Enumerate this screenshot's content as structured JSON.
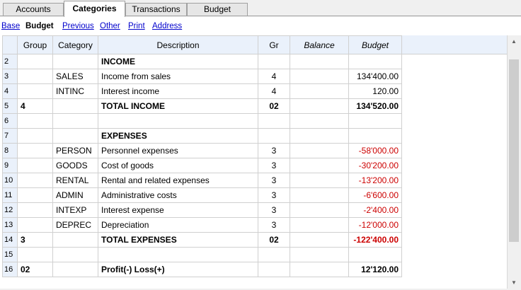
{
  "tabs": [
    {
      "label": "Accounts"
    },
    {
      "label": "Categories"
    },
    {
      "label": "Transactions"
    },
    {
      "label": "Budget"
    }
  ],
  "views": {
    "base": "Base",
    "budget": "Budget",
    "previous": "Previous",
    "other": "Other",
    "print": "Print",
    "address": "Address"
  },
  "columns": {
    "group": "Group",
    "category": "Category",
    "description": "Description",
    "gr": "Gr",
    "balance": "Balance",
    "budget": "Budget"
  },
  "rows": [
    {
      "n": "2",
      "group": "",
      "category": "",
      "description": "INCOME",
      "gr": "",
      "balance": "",
      "budget": ""
    },
    {
      "n": "3",
      "group": "",
      "category": "SALES",
      "description": "Income from sales",
      "gr": "4",
      "balance": "",
      "budget": "134'400.00"
    },
    {
      "n": "4",
      "group": "",
      "category": "INTINC",
      "description": "Interest income",
      "gr": "4",
      "balance": "",
      "budget": "120.00"
    },
    {
      "n": "5",
      "group": "4",
      "category": "",
      "description": "TOTAL INCOME",
      "gr": "02",
      "balance": "",
      "budget": "134'520.00"
    },
    {
      "n": "6",
      "group": "",
      "category": "",
      "description": "",
      "gr": "",
      "balance": "",
      "budget": ""
    },
    {
      "n": "7",
      "group": "",
      "category": "",
      "description": "EXPENSES",
      "gr": "",
      "balance": "",
      "budget": ""
    },
    {
      "n": "8",
      "group": "",
      "category": "PERSON",
      "description": "Personnel expenses",
      "gr": "3",
      "balance": "",
      "budget": "-58'000.00"
    },
    {
      "n": "9",
      "group": "",
      "category": "GOODS",
      "description": "Cost of goods",
      "gr": "3",
      "balance": "",
      "budget": "-30'200.00"
    },
    {
      "n": "10",
      "group": "",
      "category": "RENTAL",
      "description": "Rental and related expenses",
      "gr": "3",
      "balance": "",
      "budget": "-13'200.00"
    },
    {
      "n": "11",
      "group": "",
      "category": "ADMIN",
      "description": "Administrative costs",
      "gr": "3",
      "balance": "",
      "budget": "-6'600.00"
    },
    {
      "n": "12",
      "group": "",
      "category": "INTEXP",
      "description": "Interest expense",
      "gr": "3",
      "balance": "",
      "budget": "-2'400.00"
    },
    {
      "n": "13",
      "group": "",
      "category": "DEPREC",
      "description": "Depreciation",
      "gr": "3",
      "balance": "",
      "budget": "-12'000.00"
    },
    {
      "n": "14",
      "group": "3",
      "category": "",
      "description": "TOTAL EXPENSES",
      "gr": "02",
      "balance": "",
      "budget": "-122'400.00"
    },
    {
      "n": "15",
      "group": "",
      "category": "",
      "description": "",
      "gr": "",
      "balance": "",
      "budget": ""
    },
    {
      "n": "16",
      "group": "02",
      "category": "",
      "description": "Profit(-) Loss(+)",
      "gr": "",
      "balance": "",
      "budget": "12'120.00"
    }
  ],
  "colors": {
    "negative": "#cc0000",
    "header_bg": "#eaf1fb",
    "link": "#0000cc"
  }
}
